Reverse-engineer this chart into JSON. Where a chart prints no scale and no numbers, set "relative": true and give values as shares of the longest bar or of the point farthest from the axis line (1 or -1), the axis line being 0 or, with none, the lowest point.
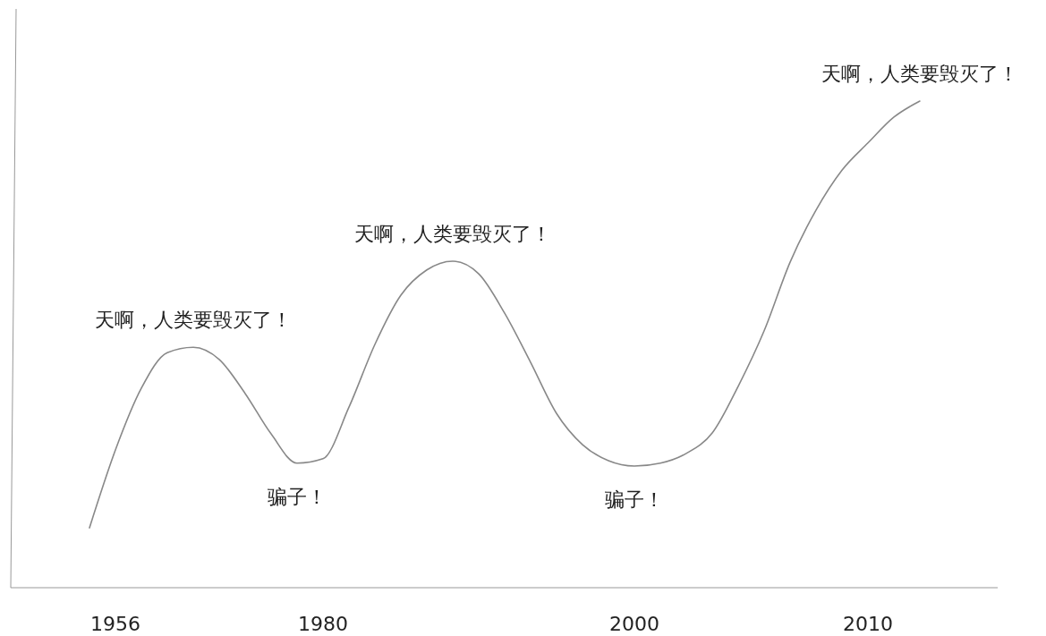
{
  "chart_data": {
    "type": "line",
    "relative": true,
    "color": "#888888",
    "categories": [
      null,
      "1956",
      null,
      null,
      null,
      null,
      null,
      null,
      null,
      "1980",
      null,
      null,
      null,
      null,
      null,
      null,
      null,
      null,
      null,
      null,
      null,
      "2000",
      null,
      null,
      null,
      null,
      null,
      null,
      null,
      null,
      "2010",
      null,
      null
    ],
    "values": [
      0.123,
      0.283,
      0.41,
      0.483,
      0.494,
      0.469,
      0.399,
      0.316,
      0.256,
      0.265,
      0.371,
      0.5,
      0.601,
      0.653,
      0.671,
      0.645,
      0.564,
      0.463,
      0.358,
      0.294,
      0.261,
      0.25,
      0.256,
      0.276,
      0.318,
      0.414,
      0.528,
      0.669,
      0.776,
      0.858,
      0.914,
      0.967,
      1.0
    ],
    "annotations": [
      "天啊，人类要毁灭了！",
      "骗子！",
      "天啊，人类要毁灭了！",
      "骗子！",
      "天啊，人类要毁灭了！"
    ],
    "grid": false,
    "marker": "none",
    "line_style": "solid"
  }
}
